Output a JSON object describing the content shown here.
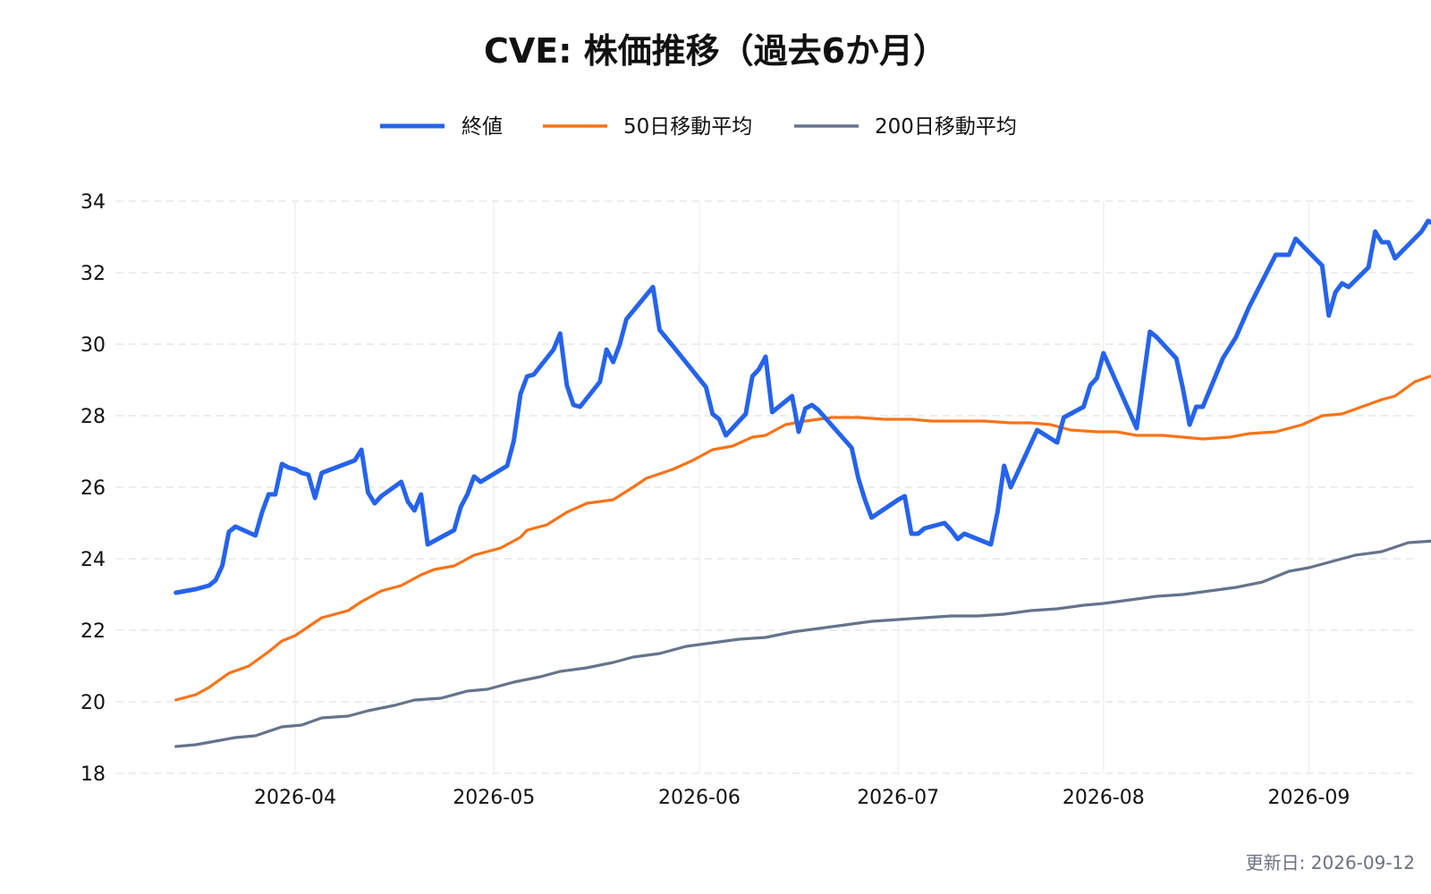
{
  "chart_data": {
    "type": "line",
    "title": "CVE: 株価推移（過去6か月）",
    "xlabel": "",
    "ylabel": "",
    "ylim": [
      18,
      34
    ],
    "yticks": [
      18,
      20,
      22,
      24,
      26,
      28,
      30,
      32,
      34
    ],
    "xlim": [
      "2026-03-05",
      "2026-09-17"
    ],
    "xticks": [
      "2026-04-01",
      "2026-05-01",
      "2026-06-01",
      "2026-07-01",
      "2026-08-01",
      "2026-09-01"
    ],
    "xtick_labels": [
      "2026-04",
      "2026-05",
      "2026-06",
      "2026-07",
      "2026-08",
      "2026-09"
    ],
    "grid": true,
    "legend_position": "top-center",
    "series": [
      {
        "name": "終値",
        "color": "#2563eb",
        "points": [
          [
            "2026-03-14",
            23.05
          ],
          [
            "2026-03-17",
            23.15
          ],
          [
            "2026-03-19",
            23.25
          ],
          [
            "2026-03-20",
            23.4
          ],
          [
            "2026-03-21",
            23.8
          ],
          [
            "2026-03-22",
            24.75
          ],
          [
            "2026-03-23",
            24.9
          ],
          [
            "2026-03-26",
            24.65
          ],
          [
            "2026-03-27",
            25.3
          ],
          [
            "2026-03-28",
            25.8
          ],
          [
            "2026-03-29",
            25.8
          ],
          [
            "2026-03-30",
            26.65
          ],
          [
            "2026-04-01",
            26.5
          ],
          [
            "2026-03-31",
            26.55
          ],
          [
            "2026-04-02",
            26.4
          ],
          [
            "2026-04-03",
            26.35
          ],
          [
            "2026-04-04",
            25.7
          ],
          [
            "2026-04-05",
            26.4
          ],
          [
            "2026-04-10",
            26.75
          ],
          [
            "2026-04-11",
            27.05
          ],
          [
            "2026-04-12",
            25.85
          ],
          [
            "2026-04-13",
            25.55
          ],
          [
            "2026-04-14",
            25.75
          ],
          [
            "2026-04-17",
            26.15
          ],
          [
            "2026-04-18",
            25.6
          ],
          [
            "2026-04-19",
            25.35
          ],
          [
            "2026-04-20",
            25.8
          ],
          [
            "2026-04-21",
            24.4
          ],
          [
            "2026-04-25",
            24.8
          ],
          [
            "2026-04-26",
            25.45
          ],
          [
            "2026-04-27",
            25.8
          ],
          [
            "2026-04-28",
            26.3
          ],
          [
            "2026-04-29",
            26.15
          ],
          [
            "2026-05-03",
            26.6
          ],
          [
            "2026-05-04",
            27.3
          ],
          [
            "2026-05-05",
            28.6
          ],
          [
            "2026-05-06",
            29.1
          ],
          [
            "2026-05-07",
            29.15
          ],
          [
            "2026-05-10",
            29.85
          ],
          [
            "2026-05-11",
            30.3
          ],
          [
            "2026-05-12",
            28.85
          ],
          [
            "2026-05-13",
            28.3
          ],
          [
            "2026-05-14",
            28.25
          ],
          [
            "2026-05-17",
            28.95
          ],
          [
            "2026-05-18",
            29.85
          ],
          [
            "2026-05-19",
            29.5
          ],
          [
            "2026-05-20",
            30.0
          ],
          [
            "2026-05-21",
            30.7
          ],
          [
            "2026-05-25",
            31.6
          ],
          [
            "2026-05-26",
            30.4
          ],
          [
            "2026-05-28",
            29.95
          ],
          [
            "2026-06-02",
            28.8
          ],
          [
            "2026-06-03",
            28.05
          ],
          [
            "2026-06-04",
            27.9
          ],
          [
            "2026-06-05",
            27.45
          ],
          [
            "2026-06-08",
            28.05
          ],
          [
            "2026-06-09",
            29.1
          ],
          [
            "2026-06-10",
            29.3
          ],
          [
            "2026-06-11",
            29.65
          ],
          [
            "2026-06-12",
            28.1
          ],
          [
            "2026-06-15",
            28.55
          ],
          [
            "2026-06-16",
            27.55
          ],
          [
            "2026-06-17",
            28.2
          ],
          [
            "2026-06-18",
            28.3
          ],
          [
            "2026-06-19",
            28.15
          ],
          [
            "2026-06-24",
            27.1
          ],
          [
            "2026-06-25",
            26.25
          ],
          [
            "2026-06-26",
            25.65
          ],
          [
            "2026-06-27",
            25.15
          ],
          [
            "2026-07-01",
            25.65
          ],
          [
            "2026-07-02",
            25.75
          ],
          [
            "2026-07-03",
            24.7
          ],
          [
            "2026-07-04",
            24.7
          ],
          [
            "2026-07-05",
            24.85
          ],
          [
            "2026-07-08",
            25.0
          ],
          [
            "2026-07-09",
            24.8
          ],
          [
            "2026-07-10",
            24.55
          ],
          [
            "2026-07-11",
            24.7
          ],
          [
            "2026-07-15",
            24.4
          ],
          [
            "2026-07-16",
            25.3
          ],
          [
            "2026-07-17",
            26.6
          ],
          [
            "2026-07-18",
            26.0
          ],
          [
            "2026-07-22",
            27.6
          ],
          [
            "2026-07-25",
            27.25
          ],
          [
            "2026-07-26",
            27.95
          ],
          [
            "2026-07-29",
            28.25
          ],
          [
            "2026-07-30",
            28.85
          ],
          [
            "2026-07-31",
            29.05
          ],
          [
            "2026-08-01",
            29.75
          ],
          [
            "2026-08-06",
            27.65
          ],
          [
            "2026-08-07",
            29.0
          ],
          [
            "2026-08-08",
            30.35
          ],
          [
            "2026-08-09",
            30.2
          ],
          [
            "2026-08-12",
            29.6
          ],
          [
            "2026-08-13",
            28.75
          ],
          [
            "2026-08-14",
            27.75
          ],
          [
            "2026-08-15",
            28.25
          ],
          [
            "2026-08-16",
            28.25
          ],
          [
            "2026-08-19",
            29.6
          ],
          [
            "2026-08-21",
            30.2
          ],
          [
            "2026-08-23",
            31.05
          ],
          [
            "2026-08-27",
            32.5
          ],
          [
            "2026-08-28",
            32.5
          ],
          [
            "2026-08-29",
            32.5
          ],
          [
            "2026-08-30",
            32.95
          ],
          [
            "2026-09-03",
            32.2
          ],
          [
            "2026-09-04",
            30.8
          ],
          [
            "2026-09-05",
            31.45
          ],
          [
            "2026-09-06",
            31.7
          ],
          [
            "2026-09-07",
            31.6
          ],
          [
            "2026-09-10",
            32.15
          ],
          [
            "2026-09-11",
            33.15
          ],
          [
            "2026-09-12",
            32.85
          ],
          [
            "2026-09-13",
            32.85
          ],
          [
            "2026-09-14",
            32.4
          ],
          [
            "2026-09-18",
            33.15
          ],
          [
            "2026-09-19",
            33.45
          ],
          [
            "2026-09-20",
            33.35
          ]
        ]
      },
      {
        "name": "50日移動平均",
        "color": "#f97316",
        "points": [
          [
            "2026-03-14",
            20.05
          ],
          [
            "2026-03-17",
            20.2
          ],
          [
            "2026-03-19",
            20.4
          ],
          [
            "2026-03-22",
            20.8
          ],
          [
            "2026-03-25",
            21.0
          ],
          [
            "2026-03-28",
            21.4
          ],
          [
            "2026-03-30",
            21.7
          ],
          [
            "2026-04-01",
            21.85
          ],
          [
            "2026-04-05",
            22.35
          ],
          [
            "2026-04-09",
            22.55
          ],
          [
            "2026-04-11",
            22.8
          ],
          [
            "2026-04-14",
            23.1
          ],
          [
            "2026-04-17",
            23.25
          ],
          [
            "2026-04-20",
            23.55
          ],
          [
            "2026-04-22",
            23.7
          ],
          [
            "2026-04-25",
            23.8
          ],
          [
            "2026-04-28",
            24.1
          ],
          [
            "2026-05-02",
            24.3
          ],
          [
            "2026-05-05",
            24.6
          ],
          [
            "2026-05-06",
            24.8
          ],
          [
            "2026-05-09",
            24.95
          ],
          [
            "2026-05-12",
            25.3
          ],
          [
            "2026-05-15",
            25.55
          ],
          [
            "2026-05-19",
            25.65
          ],
          [
            "2026-05-22",
            26.0
          ],
          [
            "2026-05-24",
            26.25
          ],
          [
            "2026-05-28",
            26.5
          ],
          [
            "2026-05-31",
            26.75
          ],
          [
            "2026-06-03",
            27.05
          ],
          [
            "2026-06-06",
            27.15
          ],
          [
            "2026-06-09",
            27.4
          ],
          [
            "2026-06-11",
            27.45
          ],
          [
            "2026-06-14",
            27.75
          ],
          [
            "2026-06-17",
            27.85
          ],
          [
            "2026-06-21",
            27.95
          ],
          [
            "2026-06-25",
            27.95
          ],
          [
            "2026-06-29",
            27.9
          ],
          [
            "2026-07-03",
            27.9
          ],
          [
            "2026-07-06",
            27.85
          ],
          [
            "2026-07-10",
            27.85
          ],
          [
            "2026-07-14",
            27.85
          ],
          [
            "2026-07-18",
            27.8
          ],
          [
            "2026-07-21",
            27.8
          ],
          [
            "2026-07-24",
            27.75
          ],
          [
            "2026-07-27",
            27.6
          ],
          [
            "2026-07-31",
            27.55
          ],
          [
            "2026-08-03",
            27.55
          ],
          [
            "2026-08-06",
            27.45
          ],
          [
            "2026-08-10",
            27.45
          ],
          [
            "2026-08-13",
            27.4
          ],
          [
            "2026-08-16",
            27.35
          ],
          [
            "2026-08-20",
            27.4
          ],
          [
            "2026-08-23",
            27.5
          ],
          [
            "2026-08-27",
            27.55
          ],
          [
            "2026-08-31",
            27.75
          ],
          [
            "2026-09-03",
            28.0
          ],
          [
            "2026-09-06",
            28.05
          ],
          [
            "2026-09-09",
            28.25
          ],
          [
            "2026-09-12",
            28.45
          ],
          [
            "2026-09-14",
            28.55
          ],
          [
            "2026-09-17",
            28.95
          ],
          [
            "2026-09-20",
            29.15
          ],
          [
            "2026-09-22",
            29.3
          ],
          [
            "2026-09-26",
            29.7
          ]
        ]
      },
      {
        "name": "200日移動平均",
        "color": "#64748b",
        "points": [
          [
            "2026-03-14",
            18.75
          ],
          [
            "2026-03-17",
            18.8
          ],
          [
            "2026-03-20",
            18.9
          ],
          [
            "2026-03-23",
            19.0
          ],
          [
            "2026-03-26",
            19.05
          ],
          [
            "2026-03-30",
            19.3
          ],
          [
            "2026-04-02",
            19.35
          ],
          [
            "2026-04-05",
            19.55
          ],
          [
            "2026-04-09",
            19.6
          ],
          [
            "2026-04-12",
            19.75
          ],
          [
            "2026-04-16",
            19.9
          ],
          [
            "2026-04-19",
            20.05
          ],
          [
            "2026-04-23",
            20.1
          ],
          [
            "2026-04-27",
            20.3
          ],
          [
            "2026-04-30",
            20.35
          ],
          [
            "2026-05-04",
            20.55
          ],
          [
            "2026-05-08",
            20.7
          ],
          [
            "2026-05-11",
            20.85
          ],
          [
            "2026-05-15",
            20.95
          ],
          [
            "2026-05-19",
            21.1
          ],
          [
            "2026-05-22",
            21.25
          ],
          [
            "2026-05-26",
            21.35
          ],
          [
            "2026-05-30",
            21.55
          ],
          [
            "2026-06-03",
            21.65
          ],
          [
            "2026-06-07",
            21.75
          ],
          [
            "2026-06-11",
            21.8
          ],
          [
            "2026-06-15",
            21.95
          ],
          [
            "2026-06-19",
            22.05
          ],
          [
            "2026-06-23",
            22.15
          ],
          [
            "2026-06-27",
            22.25
          ],
          [
            "2026-07-01",
            22.3
          ],
          [
            "2026-07-05",
            22.35
          ],
          [
            "2026-07-09",
            22.4
          ],
          [
            "2026-07-13",
            22.4
          ],
          [
            "2026-07-17",
            22.45
          ],
          [
            "2026-07-21",
            22.55
          ],
          [
            "2026-07-25",
            22.6
          ],
          [
            "2026-07-29",
            22.7
          ],
          [
            "2026-08-01",
            22.75
          ],
          [
            "2026-08-05",
            22.85
          ],
          [
            "2026-08-09",
            22.95
          ],
          [
            "2026-08-13",
            23.0
          ],
          [
            "2026-08-17",
            23.1
          ],
          [
            "2026-08-21",
            23.2
          ],
          [
            "2026-08-25",
            23.35
          ],
          [
            "2026-08-29",
            23.65
          ],
          [
            "2026-09-01",
            23.75
          ],
          [
            "2026-09-05",
            23.95
          ],
          [
            "2026-09-08",
            24.1
          ],
          [
            "2026-09-12",
            24.2
          ],
          [
            "2026-09-16",
            24.45
          ],
          [
            "2026-09-20",
            24.5
          ],
          [
            "2026-09-23",
            24.6
          ],
          [
            "2026-09-26",
            24.7
          ]
        ]
      }
    ]
  },
  "footer": {
    "updated_label": "更新日: 2026-09-12"
  }
}
